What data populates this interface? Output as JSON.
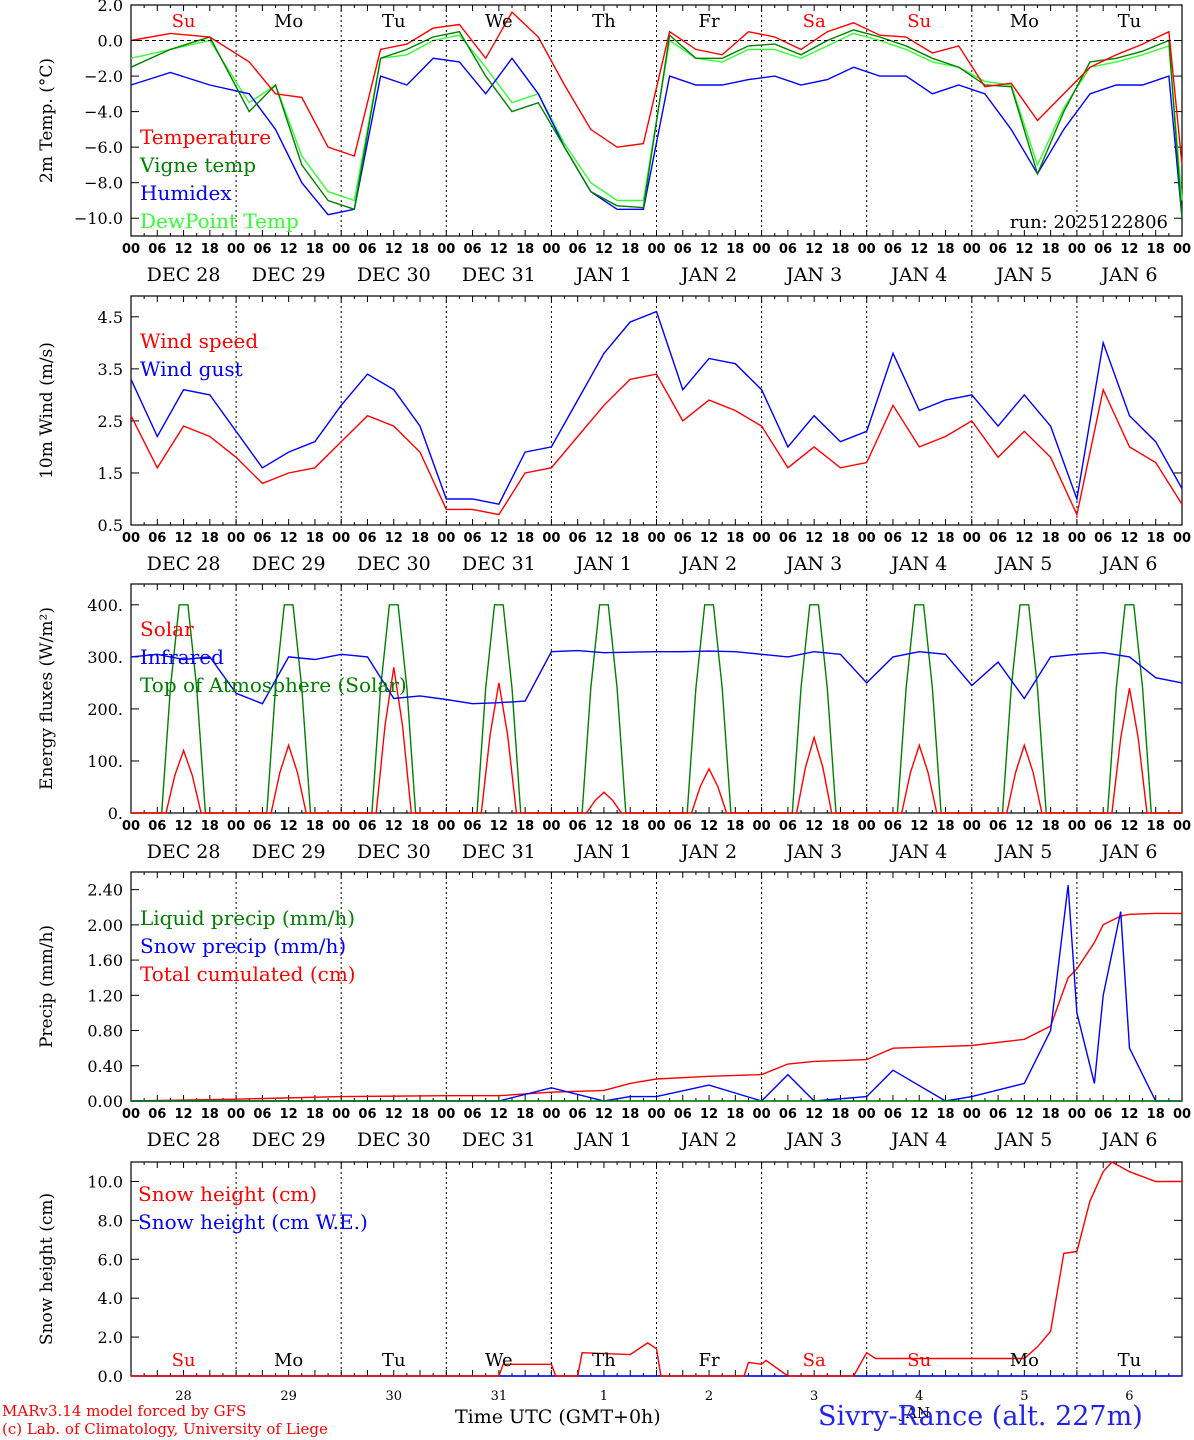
{
  "footer": {
    "credit1": "MARv3.14 model forced by GFS",
    "credit2": "(c) Lab. of Climatology, University of Liege",
    "xlabel": "Time UTC (GMT+0h)",
    "location": "Sivry-Rance (alt. 227m)",
    "month_label": "JAN"
  },
  "colors": {
    "red": "#ff0000",
    "green": "#008000",
    "blue": "#0000ff",
    "lightgreen": "#33ff33"
  },
  "days": {
    "weekday_labels": [
      "Su",
      "Mo",
      "Tu",
      "We",
      "Th",
      "Fr",
      "Sa",
      "Su",
      "Mo",
      "Tu"
    ],
    "weekday_red": [
      true,
      false,
      false,
      false,
      false,
      false,
      true,
      true,
      false,
      false
    ],
    "date_labels": [
      "DEC 28",
      "DEC 29",
      "DEC 30",
      "DEC 31",
      "JAN  1",
      "JAN  2",
      "JAN  3",
      "JAN  4",
      "JAN  5",
      "JAN  6"
    ],
    "day_numbers": [
      "28",
      "29",
      "30",
      "31",
      "1",
      "2",
      "3",
      "4",
      "5",
      "6"
    ],
    "hour_labels": [
      "00",
      "06",
      "12",
      "18"
    ]
  },
  "chart_data": [
    {
      "type": "line",
      "id": "temperature",
      "ylabel": "2m Temp. (°C)",
      "ylim": [
        -11,
        2
      ],
      "yticks": [
        2,
        0,
        -2,
        -4,
        -6,
        -8,
        -10
      ],
      "ytick_labels": [
        "2.0",
        "0.0",
        "−2.0",
        "−4.0",
        "−6.0",
        "−8.0",
        "−10.0"
      ],
      "run_label": "run: 2025122806",
      "x_hours": [
        0,
        9,
        18,
        27,
        33,
        39,
        45,
        51,
        57,
        63,
        69,
        75,
        81,
        87,
        93,
        99,
        105,
        111,
        117,
        123,
        129,
        135,
        141,
        147,
        153,
        159,
        165,
        171,
        177,
        183,
        189,
        195,
        201,
        207,
        213,
        219,
        225,
        231,
        237,
        240
      ],
      "series": [
        {
          "name": "Temperature",
          "color": "red",
          "values": [
            0,
            0.4,
            0.2,
            -1.2,
            -3,
            -3.2,
            -6,
            -6.5,
            -0.5,
            -0.2,
            0.7,
            0.9,
            -1,
            1.6,
            0.2,
            -2.5,
            -5,
            -6,
            -5.8,
            0.5,
            -0.5,
            -0.8,
            0.5,
            0.2,
            -0.5,
            0.5,
            1,
            0.3,
            0.2,
            -0.7,
            -0.3,
            -2.6,
            -2.4,
            -4.5,
            -3,
            -1.5,
            -0.8,
            -0.2,
            0.5,
            -7
          ]
        },
        {
          "name": "Vigne temp",
          "color": "green",
          "values": [
            -1.5,
            -0.5,
            0.2,
            -4,
            -2.5,
            -7,
            -9,
            -9.5,
            -1,
            -0.5,
            0.2,
            0.5,
            -2,
            -4,
            -3.5,
            -6,
            -8.5,
            -9.3,
            -9.4,
            0.3,
            -1,
            -1,
            -0.3,
            -0.2,
            -0.8,
            0,
            0.6,
            0.2,
            -0.3,
            -1,
            -1.5,
            -2.5,
            -2.6,
            -7.5,
            -4,
            -1.2,
            -1,
            -0.6,
            0,
            -10
          ]
        },
        {
          "name": "Humidex",
          "color": "blue",
          "values": [
            -2.5,
            -1.8,
            -2.5,
            -3,
            -5,
            -8,
            -9.8,
            -9.5,
            -2,
            -2.5,
            -1,
            -1.2,
            -3,
            -1,
            -3,
            -6,
            -8.5,
            -9.5,
            -9.5,
            -2,
            -2.5,
            -2.5,
            -2.2,
            -2,
            -2.5,
            -2.2,
            -1.5,
            -2,
            -2,
            -3,
            -2.5,
            -3,
            -5,
            -7.5,
            -5,
            -3,
            -2.5,
            -2.5,
            -2,
            -10
          ]
        },
        {
          "name": "DewPoint Temp",
          "color": "lightgreen",
          "values": [
            -1,
            -0.5,
            0,
            -3.5,
            -2.5,
            -6.5,
            -8.5,
            -9,
            -1,
            -0.8,
            0,
            0.3,
            -1.5,
            -3.5,
            -3,
            -5.8,
            -8,
            -9,
            -9,
            0,
            -1,
            -1.2,
            -0.5,
            -0.5,
            -1,
            -0.3,
            0.4,
            0,
            -0.5,
            -1.2,
            -1.5,
            -2.3,
            -2.5,
            -7,
            -3.8,
            -1.5,
            -1.2,
            -0.8,
            -0.3,
            -9
          ]
        }
      ]
    },
    {
      "type": "line",
      "id": "wind",
      "ylabel": "10m Wind (m/s)",
      "ylim": [
        0.5,
        4.9
      ],
      "yticks": [
        4.5,
        3.5,
        2.5,
        1.5,
        0.5
      ],
      "ytick_labels": [
        "4.5",
        "3.5",
        "2.5",
        "1.5",
        "0.5"
      ],
      "x_hours": [
        0,
        6,
        12,
        18,
        24,
        30,
        36,
        42,
        48,
        54,
        60,
        66,
        72,
        78,
        84,
        90,
        96,
        102,
        108,
        114,
        120,
        126,
        132,
        138,
        144,
        150,
        156,
        162,
        168,
        174,
        180,
        186,
        192,
        198,
        204,
        210,
        216,
        222,
        228,
        234,
        240
      ],
      "series": [
        {
          "name": "Wind speed",
          "color": "red",
          "values": [
            2.6,
            1.6,
            2.4,
            2.2,
            1.8,
            1.3,
            1.5,
            1.6,
            2.1,
            2.6,
            2.4,
            1.9,
            0.8,
            0.8,
            0.7,
            1.5,
            1.6,
            2.2,
            2.8,
            3.3,
            3.4,
            2.5,
            2.9,
            2.7,
            2.4,
            1.6,
            2.0,
            1.6,
            1.7,
            2.8,
            2.0,
            2.2,
            2.5,
            1.8,
            2.3,
            1.8,
            0.7,
            3.1,
            2.0,
            1.7,
            0.9
          ]
        },
        {
          "name": "Wind gust",
          "color": "blue",
          "values": [
            3.3,
            2.2,
            3.1,
            3.0,
            2.3,
            1.6,
            1.9,
            2.1,
            2.8,
            3.4,
            3.1,
            2.4,
            1.0,
            1.0,
            0.9,
            1.9,
            2.0,
            2.9,
            3.8,
            4.4,
            4.6,
            3.1,
            3.7,
            3.6,
            3.1,
            2.0,
            2.6,
            2.1,
            2.3,
            3.8,
            2.7,
            2.9,
            3.0,
            2.4,
            3.0,
            2.4,
            1.0,
            4.0,
            2.6,
            2.1,
            1.2
          ]
        }
      ]
    },
    {
      "type": "line",
      "id": "energy",
      "ylabel": "Energy fluxes (W/m²)",
      "ylim": [
        0,
        440
      ],
      "yticks": [
        400,
        300,
        200,
        100,
        0
      ],
      "ytick_labels": [
        "400.",
        "300.",
        "200.",
        "100.",
        "0."
      ],
      "solar_peaks": [
        120,
        130,
        280,
        250,
        40,
        85,
        145,
        130,
        130,
        240
      ],
      "toa_peak": 400,
      "infrared_x": [
        0,
        6,
        12,
        18,
        24,
        30,
        36,
        42,
        48,
        54,
        60,
        66,
        72,
        78,
        84,
        90,
        96,
        102,
        108,
        114,
        120,
        126,
        132,
        138,
        144,
        150,
        156,
        162,
        168,
        174,
        180,
        186,
        192,
        198,
        204,
        210,
        216,
        222,
        228,
        234,
        240
      ],
      "infrared": [
        300,
        305,
        295,
        300,
        230,
        210,
        300,
        295,
        305,
        300,
        220,
        225,
        218,
        210,
        212,
        215,
        310,
        312,
        308,
        309,
        310,
        310,
        311,
        310,
        305,
        300,
        310,
        305,
        250,
        300,
        310,
        305,
        245,
        290,
        220,
        300,
        305,
        308,
        300,
        260,
        250
      ],
      "series": [
        {
          "name": "Solar",
          "color": "red"
        },
        {
          "name": "Infrared",
          "color": "blue"
        },
        {
          "name": "Top of Atmosphere (Solar)",
          "color": "green"
        }
      ]
    },
    {
      "type": "line",
      "id": "precip",
      "ylabel": "Precip (mm/h)",
      "ylim": [
        0,
        2.6
      ],
      "yticks": [
        2.4,
        2.0,
        1.6,
        1.2,
        0.8,
        0.4,
        0.0
      ],
      "ytick_labels": [
        "2.40",
        "2.00",
        "1.60",
        "1.20",
        "0.80",
        "0.40",
        "0.00"
      ],
      "x_hours": [
        0,
        24,
        48,
        72,
        84,
        96,
        108,
        114,
        120,
        132,
        144,
        150,
        156,
        168,
        174,
        186,
        192,
        204,
        210,
        214,
        216,
        220,
        222,
        226,
        228,
        234,
        240
      ],
      "series": [
        {
          "name": "Liquid precip (mm/h)",
          "color": "green",
          "values": [
            0,
            0,
            0,
            0,
            0,
            0,
            0,
            0,
            0,
            0,
            0,
            0,
            0,
            0,
            0,
            0,
            0,
            0,
            0,
            0,
            0,
            0,
            0,
            0,
            0,
            0,
            0
          ]
        },
        {
          "name": "Snow precip (mm/h)",
          "color": "blue",
          "values": [
            0,
            0,
            0,
            0,
            0,
            0.15,
            0,
            0.05,
            0.05,
            0.18,
            0,
            0.3,
            0,
            0.05,
            0.35,
            0,
            0.05,
            0.2,
            0.8,
            2.45,
            1.0,
            0.2,
            1.2,
            2.15,
            0.6,
            0,
            0
          ]
        },
        {
          "name": "Total cumulated (cm)",
          "color": "red",
          "values": [
            0,
            0.02,
            0.05,
            0.06,
            0.06,
            0.1,
            0.12,
            0.2,
            0.25,
            0.28,
            0.3,
            0.42,
            0.45,
            0.47,
            0.6,
            0.62,
            0.63,
            0.7,
            0.85,
            1.4,
            1.5,
            1.8,
            2.0,
            2.1,
            2.12,
            2.13,
            2.13
          ]
        }
      ]
    },
    {
      "type": "line",
      "id": "snow",
      "ylabel": "Snow height (cm)",
      "ylim": [
        0,
        11
      ],
      "yticks": [
        10,
        8,
        6,
        4,
        2,
        0
      ],
      "ytick_labels": [
        "10.0",
        "8.0",
        "6.0",
        "4.0",
        "2.0",
        "0.0"
      ],
      "x_hours": [
        0,
        84,
        85,
        96,
        97,
        102,
        103,
        114,
        118,
        120,
        121,
        126,
        140,
        141,
        144,
        145,
        150,
        154,
        165,
        168,
        170,
        204,
        207,
        210,
        213,
        216,
        219,
        222,
        224,
        228,
        234,
        240
      ],
      "series": [
        {
          "name": "Snow height (cm)",
          "color": "red",
          "values": [
            0,
            0,
            0.6,
            0.6,
            0,
            0,
            1.2,
            1.1,
            1.7,
            1.4,
            0,
            0,
            0,
            0.7,
            0.6,
            0.8,
            0,
            0,
            0,
            1.2,
            0.9,
            0.9,
            1.5,
            2.3,
            6.3,
            6.4,
            9.0,
            10.5,
            11.0,
            10.5,
            10.0,
            10.0
          ]
        },
        {
          "name": "Snow height (cm W.E.)",
          "color": "blue",
          "values": [
            0,
            0,
            0,
            0,
            0,
            0,
            0,
            0,
            0,
            0,
            0,
            0,
            0,
            0,
            0,
            0,
            0,
            0,
            0,
            0,
            0,
            0,
            0,
            0,
            0,
            0,
            0,
            0,
            0,
            0,
            0,
            0
          ]
        }
      ]
    }
  ]
}
